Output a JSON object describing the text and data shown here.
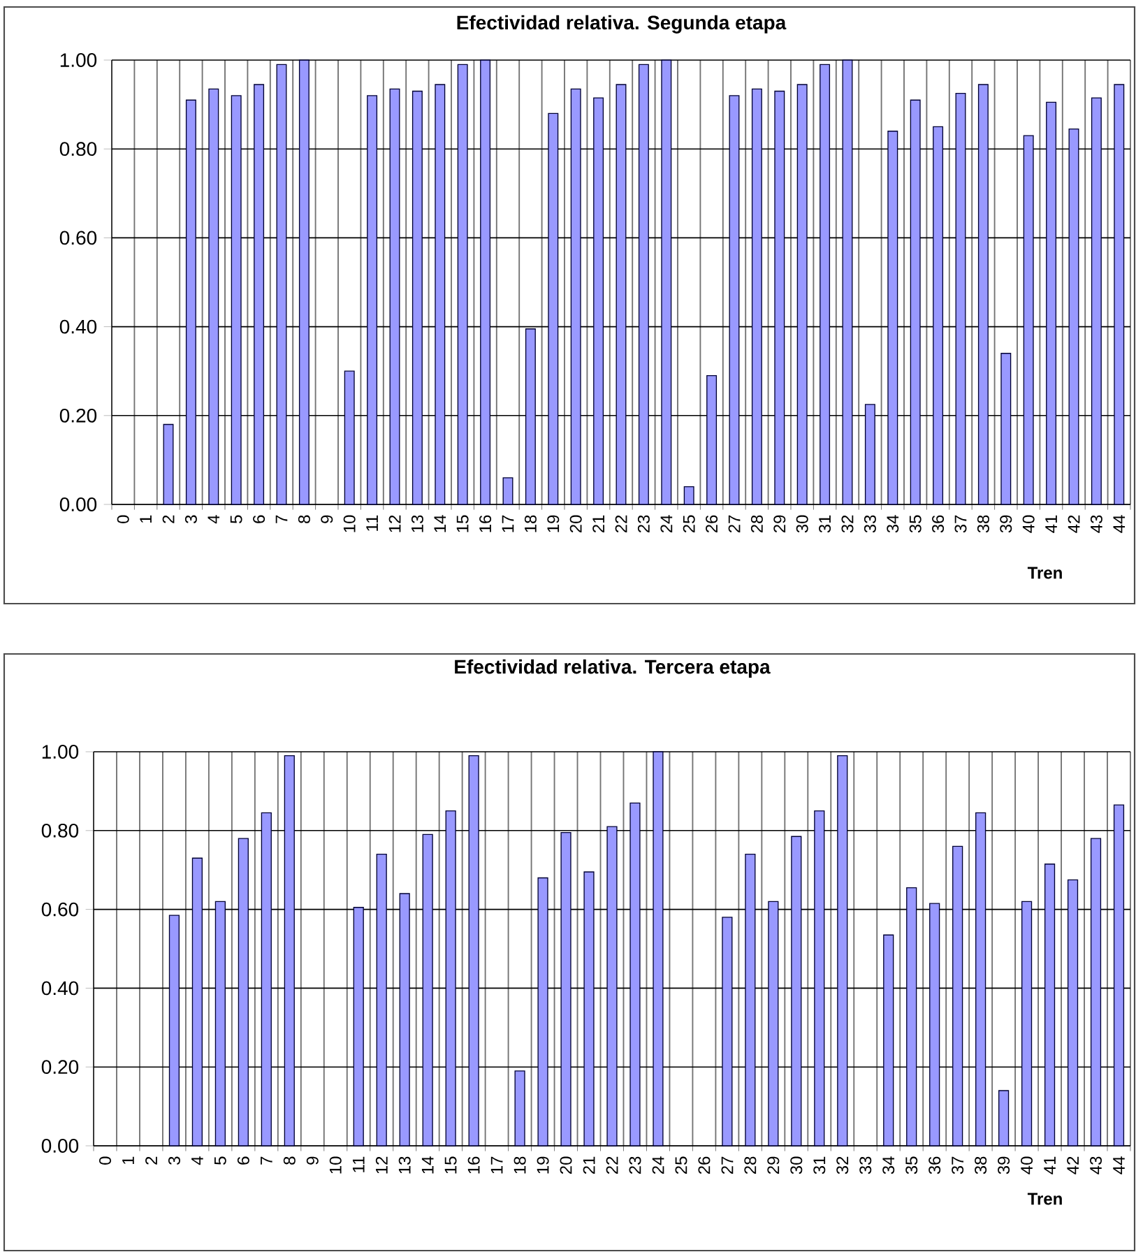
{
  "chart_data": [
    {
      "type": "bar",
      "title": "Efectividad relativa. Segunda etapa",
      "xlabel": "Tren",
      "categories": [
        "0",
        "1",
        "2",
        "3",
        "4",
        "5",
        "6",
        "7",
        "8",
        "9",
        "10",
        "11",
        "12",
        "13",
        "14",
        "15",
        "16",
        "17",
        "18",
        "19",
        "20",
        "21",
        "22",
        "23",
        "24",
        "25",
        "26",
        "27",
        "28",
        "29",
        "30",
        "31",
        "32",
        "33",
        "34",
        "35",
        "36",
        "37",
        "38",
        "39",
        "40",
        "41",
        "42",
        "43",
        "44"
      ],
      "values": [
        null,
        null,
        0.18,
        0.91,
        0.935,
        0.92,
        0.945,
        0.99,
        1.0,
        null,
        0.3,
        0.92,
        0.935,
        0.93,
        0.945,
        0.99,
        1.0,
        0.06,
        0.395,
        0.88,
        0.935,
        0.915,
        0.945,
        0.99,
        1.0,
        0.04,
        0.29,
        0.92,
        0.935,
        0.93,
        0.945,
        0.99,
        1.0,
        0.225,
        0.84,
        0.91,
        0.85,
        0.925,
        0.945,
        0.34,
        0.83,
        0.905,
        0.845,
        0.915,
        0.945
      ],
      "color": "#9999ff",
      "ylim": [
        0,
        1
      ],
      "yticks": [
        {
          "value": 0,
          "label": "0.00"
        },
        {
          "value": 0.2,
          "label": "0.20"
        },
        {
          "value": 0.4,
          "label": "0.40"
        },
        {
          "value": 0.6,
          "label": "0.60"
        },
        {
          "value": 0.8,
          "label": "0.80"
        },
        {
          "value": 1,
          "label": "1.00"
        }
      ],
      "grid": true
    },
    {
      "type": "bar",
      "title": "Efectividad relativa. Tercera etapa",
      "xlabel": "Tren",
      "categories": [
        "0",
        "1",
        "2",
        "3",
        "4",
        "5",
        "6",
        "7",
        "8",
        "9",
        "10",
        "11",
        "12",
        "13",
        "14",
        "15",
        "16",
        "17",
        "18",
        "19",
        "20",
        "21",
        "22",
        "23",
        "24",
        "25",
        "26",
        "27",
        "28",
        "29",
        "30",
        "31",
        "32",
        "33",
        "34",
        "35",
        "36",
        "37",
        "38",
        "39",
        "40",
        "41",
        "42",
        "43",
        "44"
      ],
      "values": [
        null,
        null,
        null,
        0.585,
        0.73,
        0.62,
        0.78,
        0.845,
        0.99,
        null,
        null,
        0.605,
        0.74,
        0.64,
        0.79,
        0.85,
        0.99,
        null,
        0.19,
        0.68,
        0.795,
        0.695,
        0.81,
        0.87,
        1.0,
        null,
        null,
        0.58,
        0.74,
        0.62,
        0.785,
        0.85,
        0.99,
        null,
        0.535,
        0.655,
        0.615,
        0.76,
        0.845,
        0.14,
        0.62,
        0.715,
        0.675,
        0.78,
        0.865
      ],
      "color": "#9999ff",
      "ylim": [
        0,
        1
      ],
      "yticks": [
        {
          "value": 0,
          "label": "0.00"
        },
        {
          "value": 0.2,
          "label": "0.20"
        },
        {
          "value": 0.4,
          "label": "0.40"
        },
        {
          "value": 0.6,
          "label": "0.60"
        },
        {
          "value": 0.8,
          "label": "0.80"
        },
        {
          "value": 1,
          "label": "1.00"
        }
      ],
      "grid": true
    }
  ]
}
